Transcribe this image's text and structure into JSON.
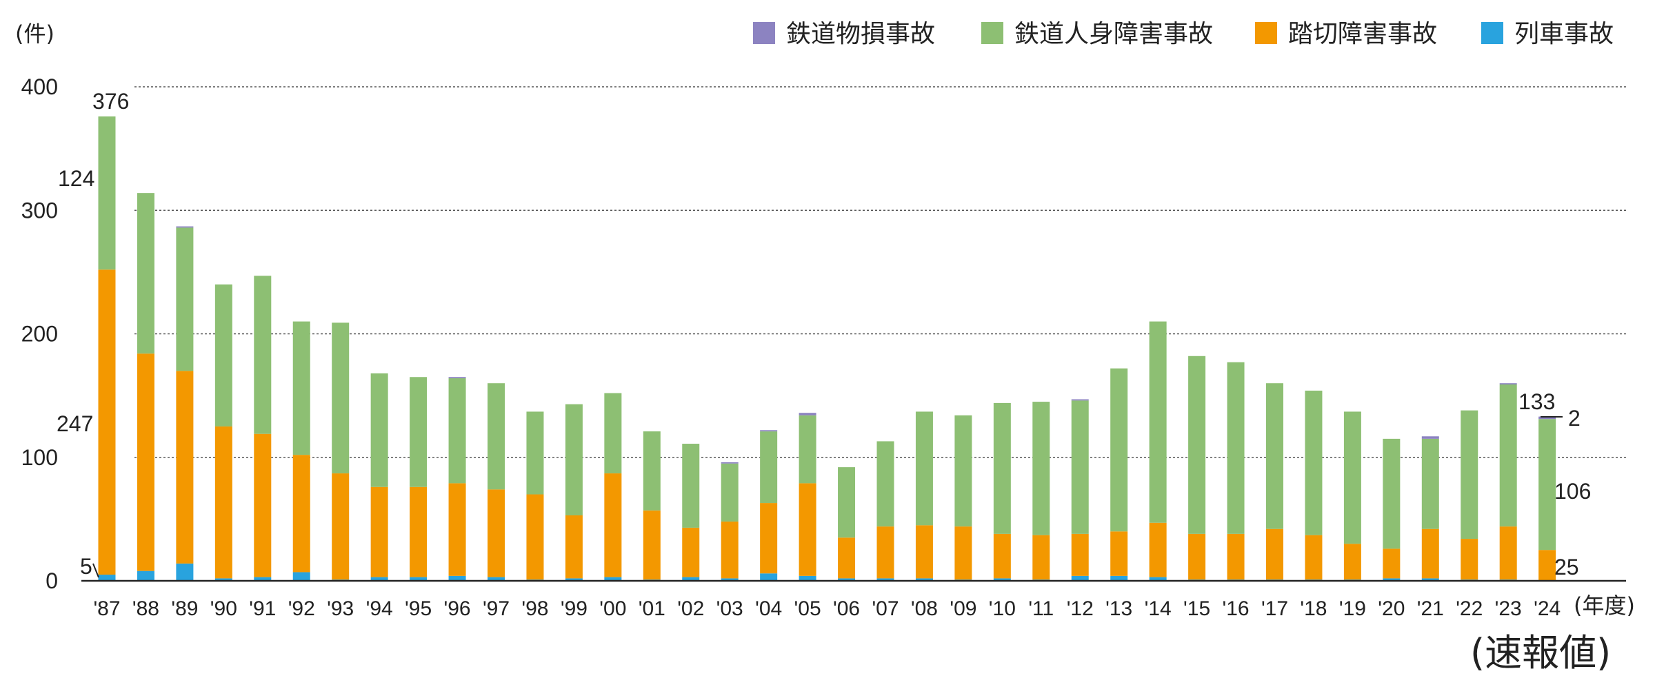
{
  "chart_data": {
    "type": "bar",
    "stacked": true,
    "y_unit_label": "(件)",
    "x_unit_label": "(年度)",
    "note": "(速報値)",
    "ylim": [
      0,
      400
    ],
    "y_ticks": [
      0,
      100,
      200,
      300,
      400
    ],
    "grid": "horizontal dotted",
    "legend_position": "top-right",
    "categories": [
      "'87",
      "'88",
      "'89",
      "'90",
      "'91",
      "'92",
      "'93",
      "'94",
      "'95",
      "'96",
      "'97",
      "'98",
      "'99",
      "'00",
      "'01",
      "'02",
      "'03",
      "'04",
      "'05",
      "'06",
      "'07",
      "'08",
      "'09",
      "'10",
      "'11",
      "'12",
      "'13",
      "'14",
      "'15",
      "'16",
      "'17",
      "'18",
      "'19",
      "'20",
      "'21",
      "'22",
      "'23",
      "'24"
    ],
    "series": [
      {
        "name": "列車事故",
        "color": "#29a3de",
        "values": [
          5,
          8,
          14,
          2,
          3,
          7,
          1,
          3,
          3,
          4,
          3,
          1,
          2,
          3,
          1,
          3,
          2,
          6,
          4,
          2,
          2,
          2,
          1,
          2,
          1,
          4,
          4,
          3,
          1,
          1,
          1,
          1,
          1,
          2,
          2,
          1,
          1,
          0
        ]
      },
      {
        "name": "踏切障害事故",
        "color": "#f39800",
        "values": [
          247,
          176,
          156,
          123,
          116,
          95,
          86,
          73,
          73,
          75,
          71,
          69,
          51,
          84,
          56,
          40,
          46,
          57,
          75,
          33,
          42,
          43,
          43,
          36,
          36,
          34,
          36,
          44,
          37,
          37,
          41,
          36,
          29,
          24,
          40,
          33,
          43,
          25
        ]
      },
      {
        "name": "鉄道人身障害事故",
        "color": "#8dbf73",
        "values": [
          124,
          130,
          116,
          115,
          128,
          108,
          122,
          92,
          89,
          85,
          86,
          67,
          90,
          65,
          64,
          68,
          47,
          58,
          55,
          57,
          69,
          92,
          90,
          106,
          108,
          108,
          132,
          163,
          144,
          139,
          118,
          117,
          107,
          89,
          73,
          104,
          115,
          106
        ]
      },
      {
        "name": "鉄道物損事故",
        "color": "#8c83c1",
        "values": [
          0,
          0,
          1,
          0,
          0,
          0,
          0,
          0,
          0,
          1,
          0,
          0,
          0,
          0,
          0,
          0,
          1,
          1,
          2,
          0,
          0,
          0,
          0,
          0,
          0,
          1,
          0,
          0,
          0,
          0,
          0,
          0,
          0,
          0,
          2,
          0,
          1,
          2
        ]
      }
    ],
    "annotations": {
      "first_total": "376",
      "first_jinshin": "124",
      "first_fumikiri": "247",
      "first_ressha": "5",
      "last_total": "133",
      "last_butsuson": "2",
      "last_jinshin": "106",
      "last_fumikiri": "25"
    }
  },
  "legend": [
    {
      "label": "鉄道物損事故",
      "color": "#8c83c1"
    },
    {
      "label": "鉄道人身障害事故",
      "color": "#8dbf73"
    },
    {
      "label": "踏切障害事故",
      "color": "#f39800"
    },
    {
      "label": "列車事故",
      "color": "#29a3de"
    }
  ]
}
